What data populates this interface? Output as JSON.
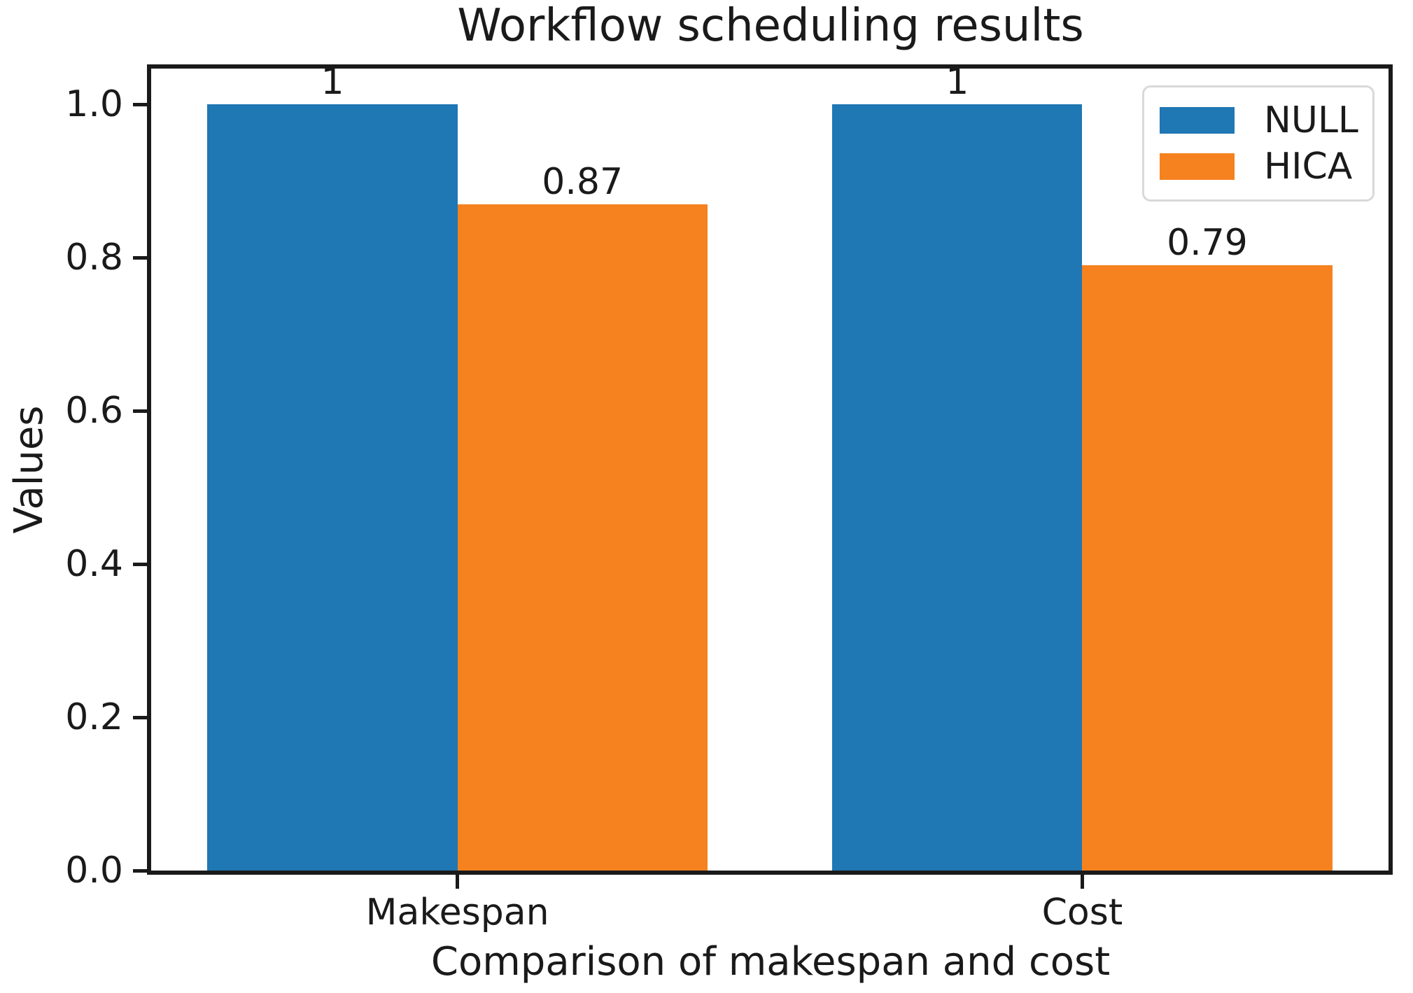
{
  "chart_data": {
    "type": "bar",
    "title": "Workflow scheduling results",
    "xlabel": "Comparison of makespan and cost",
    "ylabel": "Values",
    "categories": [
      "Makespan",
      "Cost"
    ],
    "series": [
      {
        "name": "NULL",
        "color": "#1f77b4",
        "values": [
          1,
          1
        ],
        "value_labels": [
          "1",
          "1"
        ]
      },
      {
        "name": "HICA",
        "color": "#f5821f",
        "values": [
          0.87,
          0.79
        ],
        "value_labels": [
          "0.87",
          "0.79"
        ]
      }
    ],
    "yticks": [
      0.0,
      0.2,
      0.4,
      0.6,
      0.8,
      1.0
    ],
    "ytick_labels": [
      "0.0",
      "0.2",
      "0.4",
      "0.6",
      "0.8",
      "1.0"
    ],
    "ylim": [
      0,
      1.047
    ],
    "grid": false,
    "legend_position": "upper right"
  },
  "colors": {
    "axis": "#1a1a1a",
    "legend_border": "#d9d9d9",
    "background": "#ffffff"
  }
}
